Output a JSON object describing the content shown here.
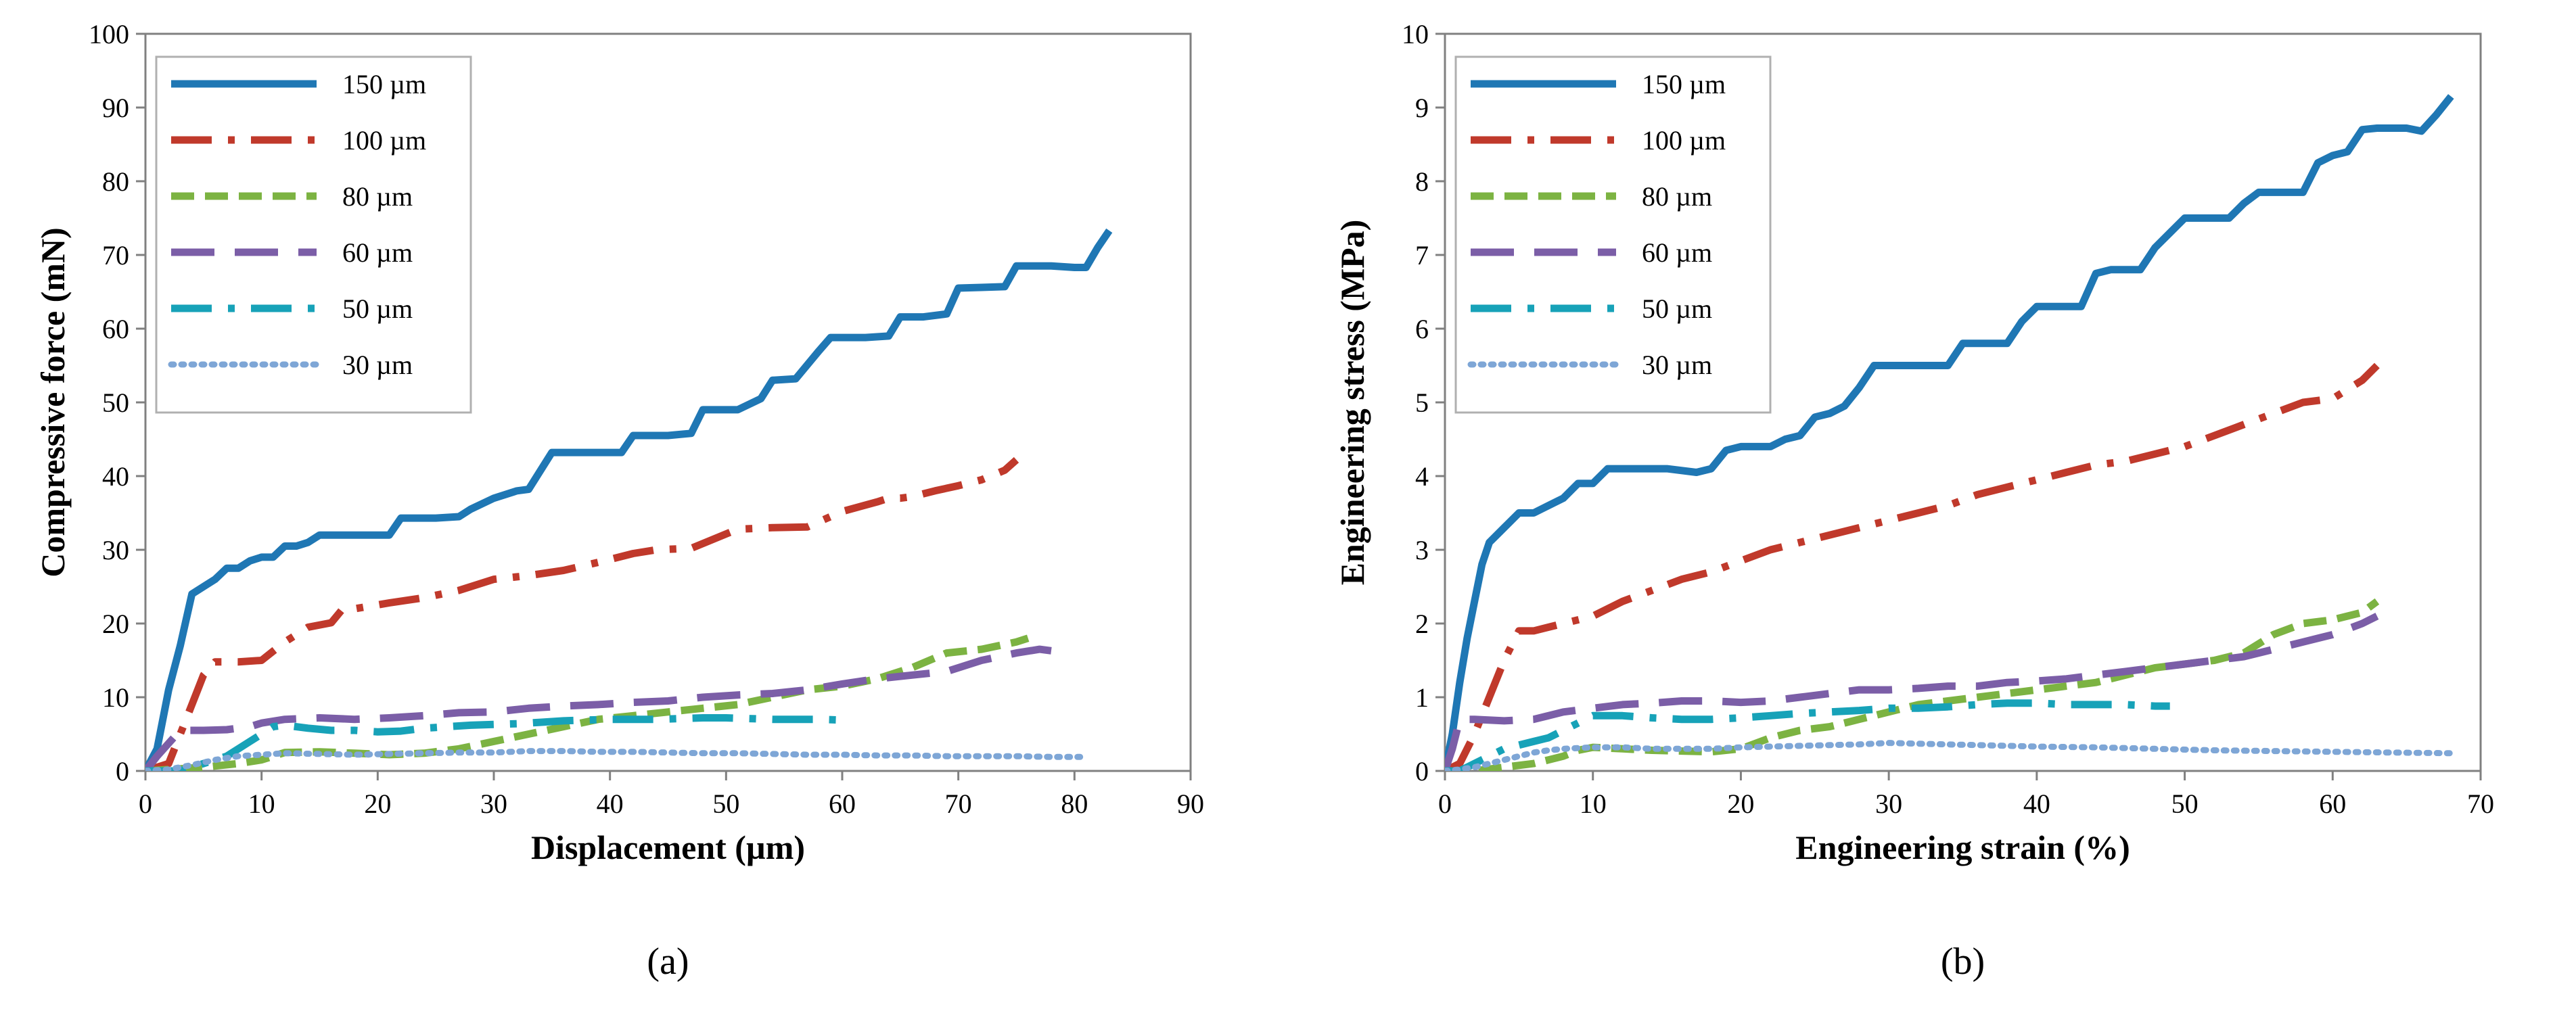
{
  "chart_data": [
    {
      "type": "line",
      "panel_label": "(a)",
      "xlabel": "Displacement (µm)",
      "ylabel": "Compressive force (mN)",
      "xlim": [
        0,
        90
      ],
      "ylim": [
        0,
        100
      ],
      "xticks": [
        "0",
        "10",
        "20",
        "30",
        "40",
        "50",
        "60",
        "70",
        "80",
        "90"
      ],
      "yticks": [
        "0",
        "10",
        "20",
        "30",
        "40",
        "50",
        "60",
        "70",
        "80",
        "90",
        "100"
      ],
      "grid": false,
      "legend_position": "top-left",
      "series": [
        {
          "name": "150 µm",
          "color": "#1f77b4",
          "style": "solid",
          "x": [
            0,
            1,
            2,
            3,
            4,
            5,
            6,
            7,
            8,
            9,
            10,
            11,
            12,
            13,
            14,
            15,
            18,
            21,
            22,
            25,
            27,
            28,
            30,
            32,
            33,
            35,
            38,
            41,
            42,
            45,
            47,
            48,
            51,
            53,
            54,
            56,
            58,
            59,
            62,
            64,
            65,
            67,
            69,
            70,
            72,
            74,
            75,
            78,
            80,
            81,
            82,
            83
          ],
          "y": [
            0,
            3,
            11,
            17,
            24,
            25,
            26,
            27.5,
            27.5,
            28.5,
            29,
            29,
            30.5,
            30.5,
            31,
            32,
            32,
            32,
            34.3,
            34.3,
            34.5,
            35.5,
            37,
            38,
            38.2,
            43.2,
            43.2,
            43.2,
            45.5,
            45.5,
            45.8,
            49,
            49,
            50.5,
            53,
            53.2,
            57,
            58.8,
            58.8,
            59,
            61.6,
            61.6,
            62,
            65.5,
            65.6,
            65.7,
            68.5,
            68.5,
            68.3,
            68.3,
            71,
            73.3
          ]
        },
        {
          "name": "100 µm",
          "color": "#c0392b",
          "style": "dashdot",
          "x": [
            0,
            2,
            3,
            4,
            5,
            6,
            8,
            10,
            12,
            14,
            16,
            17,
            18,
            21,
            24,
            27,
            30,
            33,
            36,
            39,
            42,
            44,
            47,
            51,
            54,
            57,
            60,
            63,
            64,
            65,
            66,
            68,
            70,
            72,
            74,
            75
          ],
          "y": [
            0,
            1,
            5,
            9,
            13,
            14.8,
            14.8,
            15,
            17.5,
            19.5,
            20.1,
            22,
            22,
            22.8,
            23.5,
            24.5,
            26,
            26.5,
            27.2,
            28.3,
            29.5,
            30,
            30.2,
            32.8,
            33,
            33.1,
            35.2,
            36.5,
            37,
            37,
            37.2,
            38,
            38.7,
            39.5,
            40.8,
            42.2
          ]
        },
        {
          "name": "80 µm",
          "color": "#7cb342",
          "style": "dashed",
          "x": [
            0,
            5,
            8,
            10,
            11,
            12,
            15,
            18,
            21,
            24,
            27,
            30,
            33,
            36,
            39,
            42,
            45,
            48,
            51,
            54,
            57,
            60,
            63,
            66,
            69,
            72,
            75,
            76
          ],
          "y": [
            0,
            0.5,
            1,
            1.5,
            2,
            2.5,
            2.6,
            2.4,
            2.2,
            2.4,
            3,
            4,
            5,
            6,
            7,
            7.5,
            8,
            8.5,
            9,
            10,
            11,
            11.5,
            12.5,
            14,
            16,
            16.5,
            17.5,
            18
          ]
        },
        {
          "name": "60 µm",
          "color": "#7b5ea7",
          "style": "longdash",
          "x": [
            0,
            1,
            3,
            5,
            7,
            8,
            9,
            10,
            12,
            15,
            18,
            21,
            24,
            27,
            30,
            33,
            36,
            39,
            42,
            45,
            48,
            51,
            54,
            57,
            60,
            63,
            66,
            69,
            72,
            75,
            77,
            78
          ],
          "y": [
            0,
            2,
            5.5,
            5.5,
            5.6,
            5.8,
            6,
            6.5,
            7,
            7.2,
            7,
            7.2,
            7.5,
            7.9,
            8,
            8.5,
            8.8,
            9,
            9.3,
            9.5,
            10,
            10.3,
            10.5,
            11,
            11.8,
            12.5,
            13,
            13.5,
            15,
            16,
            16.5,
            16.3
          ]
        },
        {
          "name": "50 µm",
          "color": "#17a2b8",
          "style": "dashdot",
          "x": [
            0,
            3,
            5,
            7,
            9,
            10,
            11,
            12,
            14,
            16,
            18,
            20,
            22,
            24,
            26,
            28,
            30,
            32,
            34,
            36,
            38,
            40,
            42,
            44,
            46,
            48,
            50,
            52,
            54,
            56,
            58,
            60
          ],
          "y": [
            0,
            0,
            1,
            2,
            4,
            5,
            6,
            6.2,
            5.8,
            5.5,
            5.5,
            5.3,
            5.4,
            5.8,
            6,
            6.2,
            6.3,
            6.4,
            6.6,
            6.8,
            6.9,
            7,
            7,
            7,
            7.1,
            7.2,
            7.2,
            7.1,
            7,
            7,
            7,
            6.9
          ]
        },
        {
          "name": "30 µm",
          "color": "#7ea6d6",
          "style": "dotted",
          "x": [
            0,
            2,
            4,
            6,
            8,
            10,
            12,
            15,
            18,
            21,
            24,
            27,
            30,
            33,
            36,
            39,
            42,
            45,
            48,
            51,
            54,
            57,
            60,
            63,
            66,
            69,
            72,
            75,
            78,
            81
          ],
          "y": [
            0,
            0.2,
            0.8,
            1.5,
            2,
            2.2,
            2.4,
            2.3,
            2.2,
            2.3,
            2.4,
            2.5,
            2.5,
            2.7,
            2.7,
            2.6,
            2.6,
            2.5,
            2.4,
            2.4,
            2.3,
            2.2,
            2.2,
            2.1,
            2.1,
            2,
            2,
            2,
            1.9,
            1.9
          ]
        }
      ]
    },
    {
      "type": "line",
      "panel_label": "(b)",
      "xlabel": "Engineering strain (%)",
      "ylabel": "Engineering stress (MPa)",
      "xlim": [
        0,
        70
      ],
      "ylim": [
        0,
        10
      ],
      "xticks": [
        "0",
        "10",
        "20",
        "30",
        "40",
        "50",
        "60",
        "70"
      ],
      "yticks": [
        "0",
        "1",
        "2",
        "3",
        "4",
        "5",
        "6",
        "7",
        "8",
        "9",
        "10"
      ],
      "grid": false,
      "legend_position": "top-left",
      "series": [
        {
          "name": "150 µm",
          "color": "#1f77b4",
          "style": "solid",
          "x": [
            0,
            0.5,
            1,
            1.5,
            2,
            2.5,
            3,
            3.5,
            4,
            5,
            6,
            7,
            8,
            9,
            10,
            11,
            13,
            15,
            17,
            18,
            19,
            20,
            22,
            23,
            24,
            25,
            26,
            27,
            28,
            29,
            30,
            32,
            34,
            35,
            36,
            38,
            39,
            40,
            42,
            43,
            44,
            45,
            47,
            48,
            49,
            50,
            52,
            53,
            54,
            55,
            57,
            58,
            59,
            60,
            61,
            62,
            63,
            65,
            66,
            67,
            68
          ],
          "y": [
            0,
            0.5,
            1.2,
            1.8,
            2.3,
            2.8,
            3.1,
            3.2,
            3.3,
            3.5,
            3.5,
            3.6,
            3.7,
            3.9,
            3.9,
            4.1,
            4.1,
            4.1,
            4.05,
            4.1,
            4.35,
            4.4,
            4.4,
            4.5,
            4.55,
            4.8,
            4.85,
            4.95,
            5.2,
            5.5,
            5.5,
            5.5,
            5.5,
            5.8,
            5.8,
            5.8,
            6.1,
            6.3,
            6.3,
            6.3,
            6.75,
            6.8,
            6.8,
            7.1,
            7.3,
            7.5,
            7.5,
            7.5,
            7.7,
            7.85,
            7.85,
            7.85,
            8.25,
            8.35,
            8.4,
            8.7,
            8.72,
            8.72,
            8.68,
            8.9,
            9.15
          ]
        },
        {
          "name": "100 µm",
          "color": "#c0392b",
          "style": "dashdot",
          "x": [
            0,
            1,
            2,
            3,
            4,
            5,
            6,
            8,
            10,
            12,
            14,
            16,
            18,
            20,
            22,
            24,
            26,
            28,
            30,
            32,
            34,
            36,
            38,
            40,
            42,
            44,
            46,
            48,
            50,
            52,
            54,
            56,
            58,
            60,
            62,
            63
          ],
          "y": [
            0,
            0.1,
            0.5,
            1,
            1.5,
            1.9,
            1.9,
            2,
            2.1,
            2.3,
            2.45,
            2.6,
            2.7,
            2.85,
            3,
            3.1,
            3.2,
            3.3,
            3.4,
            3.5,
            3.6,
            3.75,
            3.85,
            3.95,
            4.05,
            4.15,
            4.2,
            4.3,
            4.4,
            4.55,
            4.7,
            4.85,
            5,
            5.05,
            5.3,
            5.5
          ]
        },
        {
          "name": "80 µm",
          "color": "#7cb342",
          "style": "dashed",
          "x": [
            0,
            2,
            4,
            6,
            7,
            8,
            9,
            10,
            12,
            14,
            16,
            18,
            20,
            22,
            24,
            26,
            28,
            30,
            32,
            34,
            36,
            38,
            40,
            42,
            44,
            46,
            48,
            50,
            52,
            54,
            56,
            58,
            60,
            62,
            63
          ],
          "y": [
            0,
            0,
            0.05,
            0.1,
            0.15,
            0.2,
            0.28,
            0.32,
            0.3,
            0.28,
            0.27,
            0.26,
            0.3,
            0.45,
            0.55,
            0.6,
            0.7,
            0.8,
            0.9,
            0.95,
            1,
            1.05,
            1.1,
            1.15,
            1.2,
            1.3,
            1.4,
            1.45,
            1.5,
            1.6,
            1.85,
            2,
            2.05,
            2.15,
            2.3
          ]
        },
        {
          "name": "60 µm",
          "color": "#7b5ea7",
          "style": "longdash",
          "x": [
            0,
            0.5,
            1,
            2,
            4,
            6,
            8,
            10,
            12,
            14,
            16,
            18,
            20,
            22,
            24,
            26,
            28,
            30,
            32,
            34,
            36,
            38,
            40,
            42,
            44,
            46,
            48,
            50,
            52,
            54,
            56,
            58,
            60,
            62,
            63
          ],
          "y": [
            0,
            0.3,
            0.7,
            0.7,
            0.68,
            0.7,
            0.8,
            0.85,
            0.9,
            0.92,
            0.95,
            0.95,
            0.93,
            0.95,
            1,
            1.05,
            1.1,
            1.1,
            1.12,
            1.15,
            1.15,
            1.2,
            1.22,
            1.25,
            1.3,
            1.35,
            1.4,
            1.45,
            1.5,
            1.55,
            1.65,
            1.75,
            1.85,
            2,
            2.1
          ]
        },
        {
          "name": "50 µm",
          "color": "#17a2b8",
          "style": "dashdot",
          "x": [
            0,
            1,
            2,
            3,
            4,
            5,
            6,
            7,
            8,
            10,
            12,
            14,
            16,
            18,
            20,
            22,
            24,
            26,
            28,
            30,
            32,
            34,
            36,
            38,
            40,
            42,
            44,
            46,
            48,
            49
          ],
          "y": [
            0,
            0,
            0.1,
            0.2,
            0.3,
            0.35,
            0.4,
            0.45,
            0.55,
            0.75,
            0.75,
            0.72,
            0.7,
            0.7,
            0.72,
            0.75,
            0.78,
            0.8,
            0.82,
            0.85,
            0.85,
            0.87,
            0.9,
            0.92,
            0.92,
            0.9,
            0.9,
            0.9,
            0.88,
            0.88
          ]
        },
        {
          "name": "30 µm",
          "color": "#7ea6d6",
          "style": "dotted",
          "x": [
            0,
            1,
            2,
            3,
            4,
            5,
            6,
            7,
            8,
            10,
            12,
            14,
            16,
            18,
            20,
            22,
            24,
            26,
            28,
            30,
            32,
            34,
            36,
            38,
            40,
            44,
            48,
            52,
            56,
            60,
            64,
            68
          ],
          "y": [
            0,
            0.02,
            0.05,
            0.1,
            0.15,
            0.2,
            0.25,
            0.28,
            0.3,
            0.32,
            0.32,
            0.3,
            0.3,
            0.3,
            0.32,
            0.33,
            0.34,
            0.35,
            0.36,
            0.38,
            0.37,
            0.36,
            0.35,
            0.34,
            0.33,
            0.32,
            0.3,
            0.28,
            0.27,
            0.26,
            0.25,
            0.24
          ]
        }
      ]
    }
  ]
}
